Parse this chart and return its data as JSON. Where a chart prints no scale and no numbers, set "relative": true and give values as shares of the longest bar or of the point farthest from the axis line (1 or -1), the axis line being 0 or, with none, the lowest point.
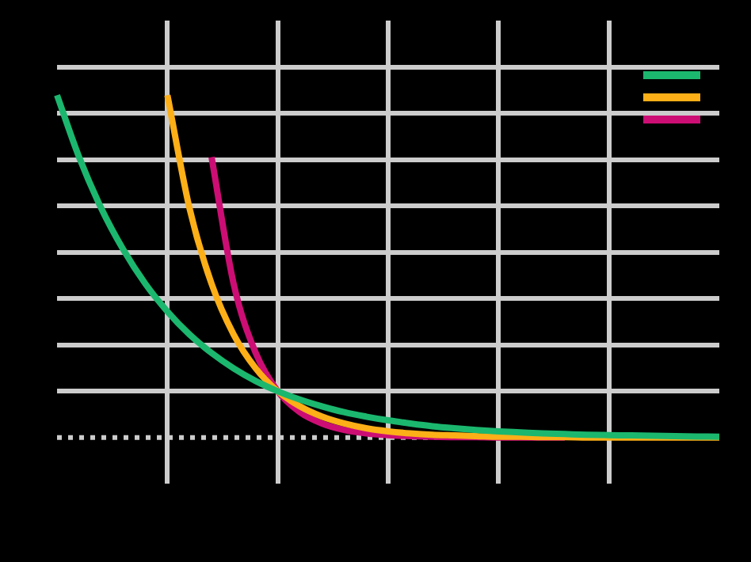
{
  "chart_data": {
    "type": "line",
    "relative": true,
    "grid": true,
    "marker": "none",
    "line_style": "solid",
    "categories": [
      null,
      null,
      null,
      null,
      null,
      null,
      null,
      null,
      null,
      null,
      null,
      null,
      null,
      null,
      null,
      null,
      null,
      null,
      null,
      null,
      null,
      null,
      null,
      null,
      null,
      null,
      null,
      null,
      null,
      null,
      null
    ],
    "series": [
      {
        "color": "#1bb76e",
        "values": [
          1,
          0.819,
          0.67,
          0.549,
          0.449,
          0.368,
          0.301,
          0.247,
          0.202,
          0.165,
          0.135,
          0.111,
          0.091,
          0.074,
          0.061,
          0.05,
          0.041,
          0.033,
          0.027,
          0.022,
          0.018,
          0.015,
          0.012,
          0.01,
          0.008,
          0.007,
          0.006,
          0.005,
          0.004,
          0.003,
          0.002
        ]
      },
      {
        "color": "#fcaf17",
        "values": [
          null,
          null,
          null,
          null,
          null,
          1,
          0.67,
          0.449,
          0.301,
          0.202,
          0.135,
          0.091,
          0.061,
          0.041,
          0.027,
          0.018,
          0.012,
          0.008,
          0.006,
          0.004,
          0.002,
          0.002,
          0.001,
          0.001,
          0,
          0,
          0,
          0,
          0,
          0,
          0
        ]
      },
      {
        "color": "#cc0e74",
        "values": [
          null,
          null,
          null,
          null,
          null,
          null,
          null,
          0.819,
          0.449,
          0.247,
          0.135,
          0.074,
          0.041,
          0.022,
          0.012,
          0.007,
          0.004,
          0.002,
          0.001,
          0.001,
          0,
          0,
          0,
          0,
          null,
          null,
          null,
          null,
          null,
          null,
          null
        ]
      }
    ],
    "ref_lines": [
      {
        "axis": "y",
        "value": 0,
        "line_style": "dotted",
        "color": "#cccccc"
      }
    ]
  }
}
